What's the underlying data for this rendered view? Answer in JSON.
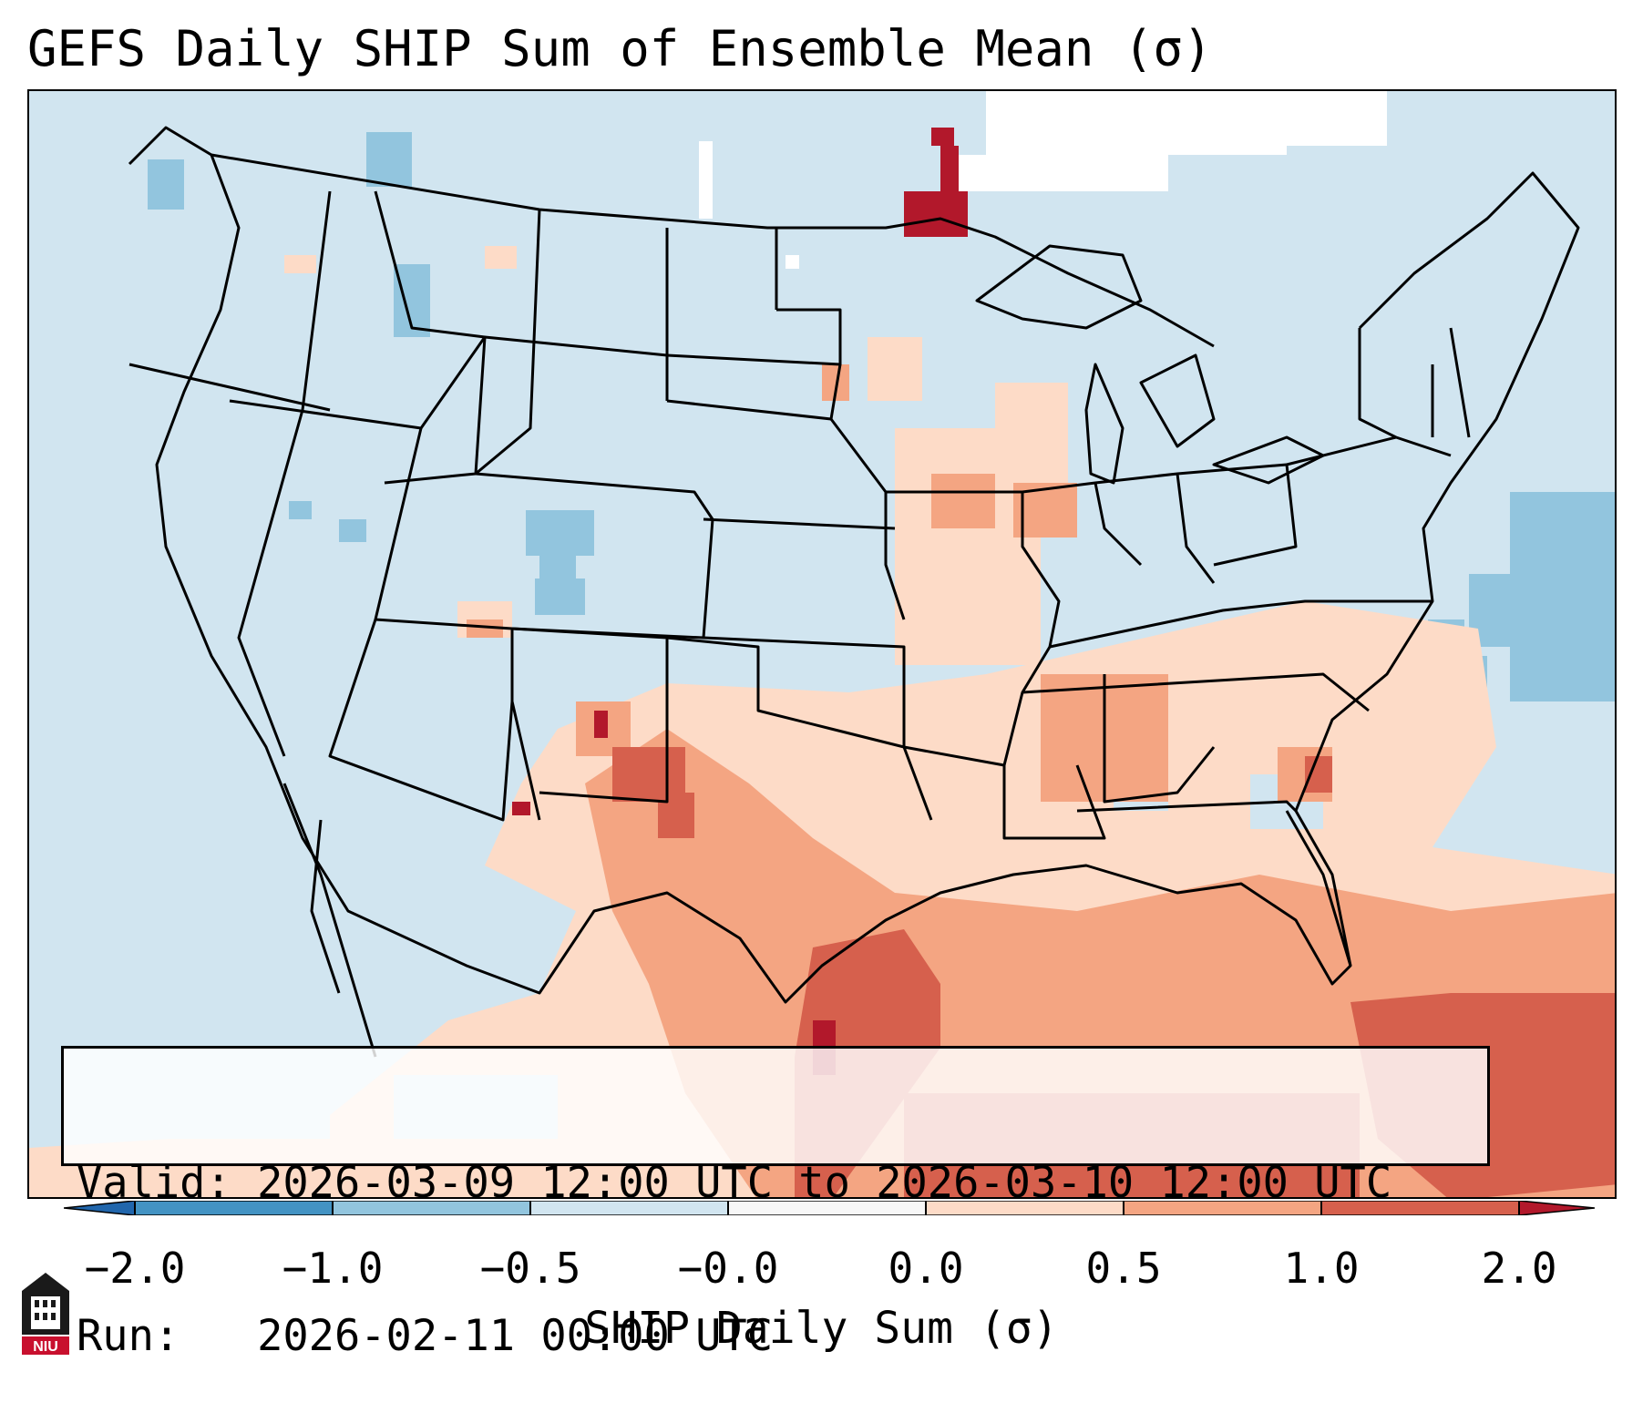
{
  "title": "GEFS Daily SHIP Sum of Ensemble Mean (σ)",
  "info": {
    "valid_label": "Valid:",
    "valid_value": "2026-03-09 12:00 UTC to 2026-03-10 12:00 UTC",
    "run_label": "Run:",
    "run_value": "2026-02-11 00:00 UTC"
  },
  "colorbar": {
    "label": "SHIP Daily Sum (σ)",
    "ticks": [
      "−2.0",
      "−1.0",
      "−0.5",
      "−0.0",
      "0.0",
      "0.5",
      "1.0",
      "2.0"
    ],
    "colors": [
      "#4393c3",
      "#92c5de",
      "#d1e5f0",
      "#f7f7f7",
      "#fddbc7",
      "#f4a582",
      "#d6604d"
    ],
    "extend_low": "#2166ac",
    "extend_high": "#b2182b"
  },
  "map": {
    "region": "Contiguous United States",
    "field_colors": {
      "ocean_background": "#d1e5f0",
      "neg_moderate": "#92c5de",
      "neutral": "#ffffff",
      "pos_light": "#fddbc7",
      "pos_moderate": "#f4a582",
      "pos_high": "#d6604d",
      "pos_extreme": "#b2182b"
    }
  },
  "logo": {
    "text": "NIU"
  }
}
